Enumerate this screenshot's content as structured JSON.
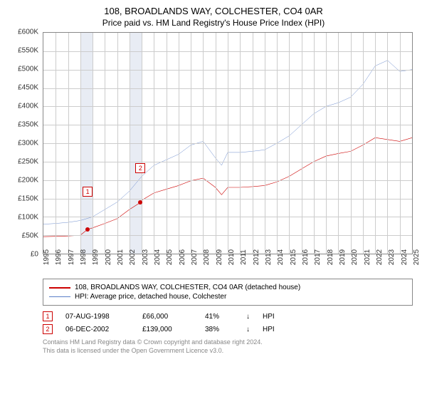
{
  "title": "108, BROADLANDS WAY, COLCHESTER, CO4 0AR",
  "subtitle": "Price paid vs. HM Land Registry's House Price Index (HPI)",
  "chart": {
    "type": "line",
    "background_color": "#ffffff",
    "grid_color": "#cccccc",
    "border_color": "#888888",
    "x_years": [
      1995,
      1996,
      1997,
      1998,
      1999,
      2000,
      2001,
      2002,
      2003,
      2004,
      2005,
      2006,
      2007,
      2008,
      2009,
      2010,
      2011,
      2012,
      2013,
      2014,
      2015,
      2016,
      2017,
      2018,
      2019,
      2020,
      2021,
      2022,
      2023,
      2024,
      2025
    ],
    "y_ticks": [
      0,
      50000,
      100000,
      150000,
      200000,
      250000,
      300000,
      350000,
      400000,
      450000,
      500000,
      550000,
      600000
    ],
    "y_tick_labels": [
      "£0",
      "£50K",
      "£100K",
      "£150K",
      "£200K",
      "£250K",
      "£300K",
      "£350K",
      "£400K",
      "£450K",
      "£500K",
      "£550K",
      "£600K"
    ],
    "ylim": [
      0,
      600000
    ],
    "xlim": [
      1995,
      2025
    ],
    "shaded_bands": [
      {
        "from": 1998.0,
        "to": 1999.0,
        "color": "#e8ecf4"
      },
      {
        "from": 2002.0,
        "to": 2003.0,
        "color": "#e8ecf4"
      }
    ],
    "series": [
      {
        "name": "property",
        "label": "108, BROADLANDS WAY, COLCHESTER, CO4 0AR (detached house)",
        "color": "#cc0000",
        "line_width": 2,
        "data": [
          [
            1995,
            46000
          ],
          [
            1996,
            47000
          ],
          [
            1997,
            48000
          ],
          [
            1998,
            50000
          ],
          [
            1998.6,
            66000
          ],
          [
            1999,
            70000
          ],
          [
            2000,
            82000
          ],
          [
            2001,
            95000
          ],
          [
            2002,
            120000
          ],
          [
            2002.9,
            139000
          ],
          [
            2003,
            145000
          ],
          [
            2004,
            165000
          ],
          [
            2005,
            175000
          ],
          [
            2006,
            185000
          ],
          [
            2007,
            198000
          ],
          [
            2008,
            205000
          ],
          [
            2009,
            180000
          ],
          [
            2009.5,
            160000
          ],
          [
            2010,
            180000
          ],
          [
            2011,
            180000
          ],
          [
            2012,
            182000
          ],
          [
            2013,
            185000
          ],
          [
            2014,
            195000
          ],
          [
            2015,
            210000
          ],
          [
            2016,
            230000
          ],
          [
            2017,
            250000
          ],
          [
            2018,
            265000
          ],
          [
            2019,
            272000
          ],
          [
            2020,
            278000
          ],
          [
            2021,
            295000
          ],
          [
            2022,
            315000
          ],
          [
            2023,
            310000
          ],
          [
            2024,
            305000
          ],
          [
            2025,
            315000
          ]
        ]
      },
      {
        "name": "hpi",
        "label": "HPI: Average price, detached house, Colchester",
        "color": "#5b7fc7",
        "line_width": 1.5,
        "data": [
          [
            1995,
            80000
          ],
          [
            1996,
            82000
          ],
          [
            1997,
            85000
          ],
          [
            1998,
            90000
          ],
          [
            1999,
            100000
          ],
          [
            2000,
            120000
          ],
          [
            2001,
            140000
          ],
          [
            2002,
            170000
          ],
          [
            2003,
            210000
          ],
          [
            2004,
            240000
          ],
          [
            2005,
            255000
          ],
          [
            2006,
            270000
          ],
          [
            2007,
            295000
          ],
          [
            2008,
            305000
          ],
          [
            2009,
            260000
          ],
          [
            2009.5,
            240000
          ],
          [
            2010,
            275000
          ],
          [
            2011,
            275000
          ],
          [
            2012,
            278000
          ],
          [
            2013,
            282000
          ],
          [
            2014,
            300000
          ],
          [
            2015,
            320000
          ],
          [
            2016,
            350000
          ],
          [
            2017,
            380000
          ],
          [
            2018,
            400000
          ],
          [
            2019,
            410000
          ],
          [
            2020,
            425000
          ],
          [
            2021,
            460000
          ],
          [
            2022,
            510000
          ],
          [
            2023,
            525000
          ],
          [
            2024,
            495000
          ],
          [
            2025,
            500000
          ]
        ]
      }
    ],
    "markers": [
      {
        "id": "1",
        "x": 1998.6,
        "y": 66000,
        "color": "#cc0000",
        "box_y_offset": -60
      },
      {
        "id": "2",
        "x": 2002.9,
        "y": 139000,
        "color": "#cc0000",
        "box_y_offset": -55
      }
    ]
  },
  "legend": {
    "items": [
      {
        "color": "#cc0000",
        "width": 2,
        "text": "108, BROADLANDS WAY, COLCHESTER, CO4 0AR (detached house)"
      },
      {
        "color": "#5b7fc7",
        "width": 1.5,
        "text": "HPI: Average price, detached house, Colchester"
      }
    ]
  },
  "datapoints": [
    {
      "id": "1",
      "color": "#cc0000",
      "date": "07-AUG-1998",
      "price": "£66,000",
      "pct": "41%",
      "arrow": "↓",
      "ref": "HPI"
    },
    {
      "id": "2",
      "color": "#cc0000",
      "date": "06-DEC-2002",
      "price": "£139,000",
      "pct": "38%",
      "arrow": "↓",
      "ref": "HPI"
    }
  ],
  "footer_line1": "Contains HM Land Registry data © Crown copyright and database right 2024.",
  "footer_line2": "This data is licensed under the Open Government Licence v3.0."
}
